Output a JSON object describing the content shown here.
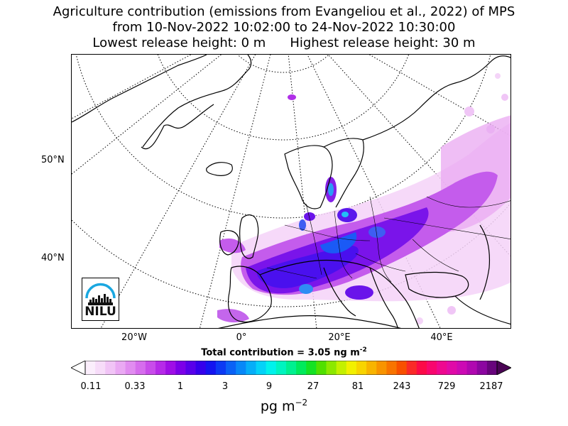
{
  "title": {
    "line1": "Agriculture contribution (emissions from Evangeliou et al., 2022) of MPS",
    "line2": "from 10-Nov-2022 10:02:00 to 24-Nov-2022 10:30:00",
    "lowest": "Lowest release height: 0 m",
    "highest": "Highest release height: 30 m"
  },
  "map": {
    "lat_labels": [
      "50°N",
      "40°N"
    ],
    "lon_labels": [
      "20°W",
      "0°",
      "20°E",
      "40°E"
    ]
  },
  "logo": {
    "text": "NILU",
    "accent_color": "#1aa7e0"
  },
  "total": {
    "prefix": "Total contribution = 3.05 ng m",
    "exponent": "-2"
  },
  "colorbar": {
    "ticks": [
      "0.11",
      "0.33",
      "1",
      "3",
      "9",
      "27",
      "81",
      "243",
      "729",
      "2187"
    ],
    "colors": [
      "#fbeefc",
      "#f7dcf9",
      "#f1c4f6",
      "#eaa9f3",
      "#e18cf0",
      "#d66ded",
      "#c84cea",
      "#b62ae8",
      "#9f0ee6",
      "#7c00e8",
      "#5800ea",
      "#3500ec",
      "#1414f0",
      "#0c3af4",
      "#0a62f6",
      "#0888f8",
      "#06aef8",
      "#04d2f8",
      "#00f2ec",
      "#00f4c0",
      "#00f090",
      "#00ea5c",
      "#14e224",
      "#50e000",
      "#8ce800",
      "#c4f000",
      "#f2f000",
      "#f8d400",
      "#f8b400",
      "#f89400",
      "#f87400",
      "#f85000",
      "#fa2a28",
      "#fc0a48",
      "#f8066e",
      "#ee0890",
      "#e00aa8",
      "#cc0ab4",
      "#b008b0",
      "#8c06a0",
      "#68047c"
    ],
    "under_color": "#ffffff",
    "over_color": "#4a0454"
  },
  "units": {
    "base": "pg m",
    "exponent": "−2"
  }
}
